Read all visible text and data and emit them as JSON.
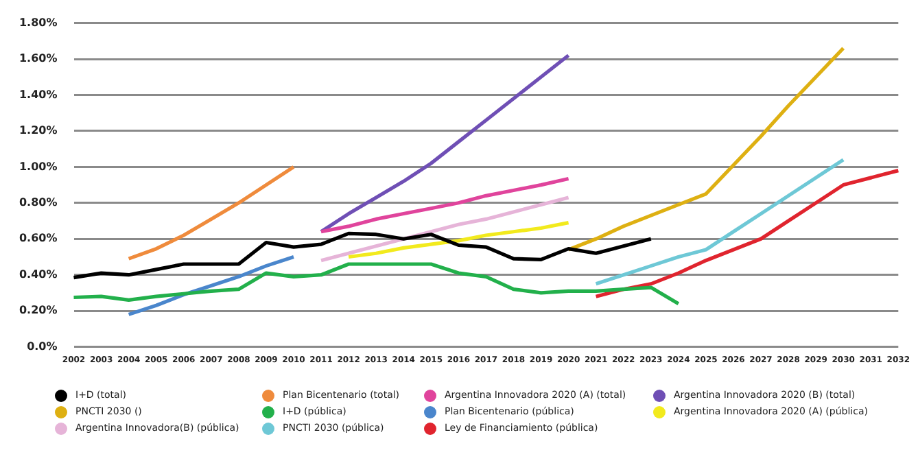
{
  "chart_data": {
    "type": "line",
    "categories": [
      "2002",
      "2003",
      "2004",
      "2005",
      "2006",
      "2007",
      "2008",
      "2009",
      "2010",
      "2011",
      "2012",
      "2013",
      "2014",
      "2015",
      "2016",
      "2017",
      "2018",
      "2019",
      "2020",
      "2021",
      "2022",
      "2023",
      "2024",
      "2025",
      "2026",
      "2027",
      "2028",
      "2029",
      "2030",
      "2031",
      "2032"
    ],
    "ylim": [
      0,
      1.8
    ],
    "yticks": [
      {
        "value": 0,
        "label": "0.0%"
      },
      {
        "value": 0.2,
        "label": "0.20%"
      },
      {
        "value": 0.4,
        "label": "0.40%"
      },
      {
        "value": 0.6,
        "label": "0.60%"
      },
      {
        "value": 0.8,
        "label": "0.80%"
      },
      {
        "value": 1.0,
        "label": "1.00%"
      },
      {
        "value": 1.2,
        "label": "1.20%"
      },
      {
        "value": 1.4,
        "label": "1.40%"
      },
      {
        "value": 1.6,
        "label": "1.60%"
      },
      {
        "value": 1.8,
        "label": "1.80%"
      }
    ],
    "grid": "y",
    "legend": "bottom",
    "marker": "none",
    "line_style": "solid",
    "series": [
      {
        "name": "I+D (total)",
        "color": "#000000",
        "values": [
          0.385,
          0.41,
          0.4,
          0.43,
          0.46,
          0.46,
          0.46,
          0.58,
          0.555,
          0.57,
          0.63,
          0.625,
          0.6,
          0.625,
          0.565,
          0.555,
          0.49,
          0.485,
          0.545,
          0.52,
          0.56,
          0.6,
          null,
          null,
          null,
          null,
          null,
          null,
          null,
          null,
          null
        ]
      },
      {
        "name": "Plan Bicentenario (total)",
        "color": "#ef8b3c",
        "values": [
          null,
          null,
          0.49,
          0.545,
          0.62,
          0.71,
          0.8,
          0.9,
          1.0,
          null,
          null,
          null,
          null,
          null,
          null,
          null,
          null,
          null,
          null,
          null,
          null,
          null,
          null,
          null,
          null,
          null,
          null,
          null,
          null,
          null,
          null
        ]
      },
      {
        "name": "Argentina Innovadora 2020 (A) (total)",
        "color": "#e0449c",
        "values": [
          null,
          null,
          null,
          null,
          null,
          null,
          null,
          null,
          null,
          0.64,
          0.67,
          0.71,
          0.74,
          0.77,
          0.8,
          0.84,
          0.87,
          0.9,
          0.935,
          null,
          null,
          null,
          null,
          null,
          null,
          null,
          null,
          null,
          null,
          null,
          null
        ]
      },
      {
        "name": "Argentina Innovadora 2020 (B) (total)",
        "color": "#6f4fb5",
        "values": [
          null,
          null,
          null,
          null,
          null,
          null,
          null,
          null,
          null,
          0.64,
          0.74,
          0.83,
          0.92,
          1.02,
          1.14,
          1.26,
          1.38,
          1.5,
          1.62,
          null,
          null,
          null,
          null,
          null,
          null,
          null,
          null,
          null,
          null,
          null,
          null
        ]
      },
      {
        "name": "PNCTI 2030 ()",
        "color": "#deb012",
        "values": [
          null,
          null,
          null,
          null,
          null,
          null,
          null,
          null,
          null,
          null,
          null,
          null,
          null,
          null,
          null,
          null,
          null,
          null,
          0.54,
          0.6,
          0.67,
          0.73,
          0.79,
          0.85,
          1.01,
          1.17,
          1.34,
          1.5,
          1.66,
          null,
          null
        ]
      },
      {
        "name": "I+D (pública)",
        "color": "#22b04b",
        "values": [
          0.275,
          0.28,
          0.26,
          0.28,
          0.295,
          0.31,
          0.32,
          0.41,
          0.39,
          0.4,
          0.46,
          0.46,
          0.46,
          0.46,
          0.41,
          0.39,
          0.32,
          0.3,
          0.31,
          0.31,
          0.32,
          0.33,
          0.24,
          null,
          null,
          null,
          null,
          null,
          null,
          null,
          null
        ]
      },
      {
        "name": "Plan Bicentenario (pública)",
        "color": "#4a86cc",
        "values": [
          null,
          null,
          0.18,
          0.23,
          0.29,
          0.34,
          0.39,
          0.45,
          0.5,
          null,
          null,
          null,
          null,
          null,
          null,
          null,
          null,
          null,
          null,
          null,
          null,
          null,
          null,
          null,
          null,
          null,
          null,
          null,
          null,
          null,
          null
        ]
      },
      {
        "name": "Argentina Innovadora 2020 (A) (pública)",
        "color": "#f2ea1d",
        "values": [
          null,
          null,
          null,
          null,
          null,
          null,
          null,
          null,
          null,
          null,
          0.5,
          0.52,
          0.55,
          0.57,
          0.59,
          0.62,
          0.64,
          0.66,
          0.69,
          null,
          null,
          null,
          null,
          null,
          null,
          null,
          null,
          null,
          null,
          null,
          null
        ]
      },
      {
        "name": "Argentina Innovadora(B) (pública)",
        "color": "#e6b4d8",
        "values": [
          null,
          null,
          null,
          null,
          null,
          null,
          null,
          null,
          null,
          0.48,
          0.52,
          0.56,
          0.6,
          0.64,
          0.68,
          0.71,
          0.75,
          0.79,
          0.83,
          null,
          null,
          null,
          null,
          null,
          null,
          null,
          null,
          null,
          null,
          null,
          null
        ]
      },
      {
        "name": "PNCTI 2030 (pública)",
        "color": "#6ec8d6",
        "values": [
          null,
          null,
          null,
          null,
          null,
          null,
          null,
          null,
          null,
          null,
          null,
          null,
          null,
          null,
          null,
          null,
          null,
          null,
          null,
          0.35,
          0.4,
          0.45,
          0.5,
          0.54,
          0.64,
          0.74,
          0.84,
          0.94,
          1.04,
          null,
          null
        ]
      },
      {
        "name": "Ley de Financiamiento (pública)",
        "color": "#e0242e",
        "values": [
          null,
          null,
          null,
          null,
          null,
          null,
          null,
          null,
          null,
          null,
          null,
          null,
          null,
          null,
          null,
          null,
          null,
          null,
          null,
          0.28,
          0.32,
          0.35,
          0.41,
          0.48,
          0.54,
          0.6,
          0.7,
          0.8,
          0.9,
          0.94,
          0.98
        ]
      }
    ]
  }
}
